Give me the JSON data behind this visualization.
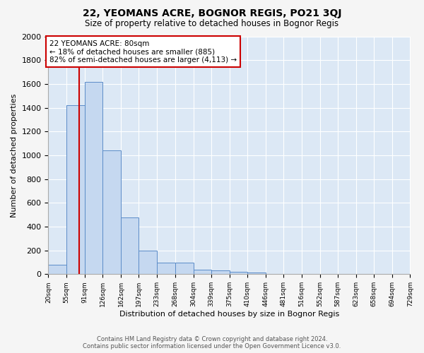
{
  "title": "22, YEOMANS ACRE, BOGNOR REGIS, PO21 3QJ",
  "subtitle": "Size of property relative to detached houses in Bognor Regis",
  "xlabel": "Distribution of detached houses by size in Bognor Regis",
  "ylabel": "Number of detached properties",
  "footer_line1": "Contains HM Land Registry data © Crown copyright and database right 2024.",
  "footer_line2": "Contains public sector information licensed under the Open Government Licence v3.0.",
  "bin_edges": [
    20,
    55,
    91,
    126,
    162,
    197,
    233,
    268,
    304,
    339,
    375,
    410,
    446,
    481,
    516,
    552,
    587,
    623,
    658,
    694,
    729
  ],
  "bin_labels": [
    "20sqm",
    "55sqm",
    "91sqm",
    "126sqm",
    "162sqm",
    "197sqm",
    "233sqm",
    "268sqm",
    "304sqm",
    "339sqm",
    "375sqm",
    "410sqm",
    "446sqm",
    "481sqm",
    "516sqm",
    "552sqm",
    "587sqm",
    "623sqm",
    "658sqm",
    "694sqm",
    "729sqm"
  ],
  "bar_values": [
    80,
    1420,
    1620,
    1040,
    480,
    200,
    100,
    100,
    40,
    30,
    20,
    15,
    5,
    5,
    0,
    0,
    0,
    0,
    0,
    0
  ],
  "bar_color": "#c5d8f0",
  "bar_edge_color": "#5b8cc8",
  "background_color": "#dce8f5",
  "grid_color": "#ffffff",
  "fig_background": "#f5f5f5",
  "ylim": [
    0,
    2000
  ],
  "vline_x": 80,
  "vline_color": "#cc0000",
  "annotation_box_color": "#cc0000",
  "annotation_line1": "22 YEOMANS ACRE: 80sqm",
  "annotation_line2": "← 18% of detached houses are smaller (885)",
  "annotation_line3": "82% of semi-detached houses are larger (4,113) →",
  "title_fontsize": 10,
  "subtitle_fontsize": 8.5,
  "tick_fontsize": 6.5,
  "ylabel_fontsize": 8,
  "xlabel_fontsize": 8,
  "annotation_fontsize": 7.5,
  "footer_fontsize": 6
}
